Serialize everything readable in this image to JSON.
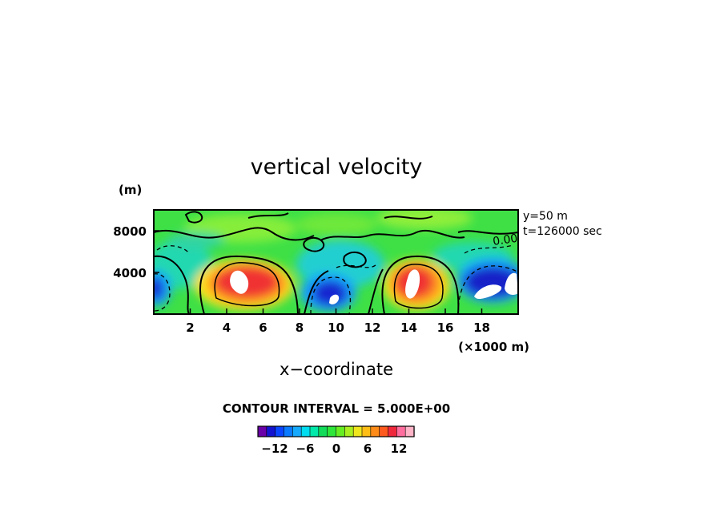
{
  "chart_data": {
    "type": "heatmap",
    "title": "vertical velocity",
    "xlabel": "x−coordinate",
    "x_unit": "(×1000 m)",
    "y_unit": "(m)",
    "x_ticks": [
      "2",
      "4",
      "6",
      "8",
      "10",
      "12",
      "14",
      "16",
      "18"
    ],
    "y_ticks": [
      "4000",
      "8000"
    ],
    "xlim": [
      0,
      20
    ],
    "ylim": [
      0,
      10000
    ],
    "annotation_y": "y=50 m",
    "annotation_t": "t=126000 sec",
    "contour_label": "0.00",
    "contour_interval_text": "CONTOUR INTERVAL = 5.000E+00",
    "colorbar": {
      "ticks": [
        "−12",
        "−6",
        "0",
        "6",
        "12"
      ],
      "levels": [
        -15,
        -13,
        -11,
        -9,
        -7,
        -5,
        -3,
        -1,
        1,
        3,
        5,
        7,
        9,
        11,
        13,
        15
      ],
      "colors": [
        "#6a00a8",
        "#1414d0",
        "#0a46ff",
        "#0a7aff",
        "#16aaff",
        "#00dcf0",
        "#00e8aa",
        "#12dc5a",
        "#2ee63a",
        "#66ee22",
        "#aaf020",
        "#f0e61e",
        "#ffbe16",
        "#ff8c18",
        "#ff5a1e",
        "#f0283c",
        "#ff6e9e",
        "#ffb4c8"
      ]
    },
    "features": [
      {
        "kind": "updraft",
        "x": 5.5,
        "y": 3000,
        "peak": 16
      },
      {
        "kind": "updraft",
        "x": 14.2,
        "y": 2900,
        "peak": 16
      },
      {
        "kind": "downdraft",
        "x": 10.1,
        "y": 2400,
        "peak": -14
      },
      {
        "kind": "downdraft",
        "x": 19.3,
        "y": 3600,
        "peak": -16
      },
      {
        "kind": "downdraft",
        "x": 0.2,
        "y": 2800,
        "peak": -12
      }
    ]
  }
}
